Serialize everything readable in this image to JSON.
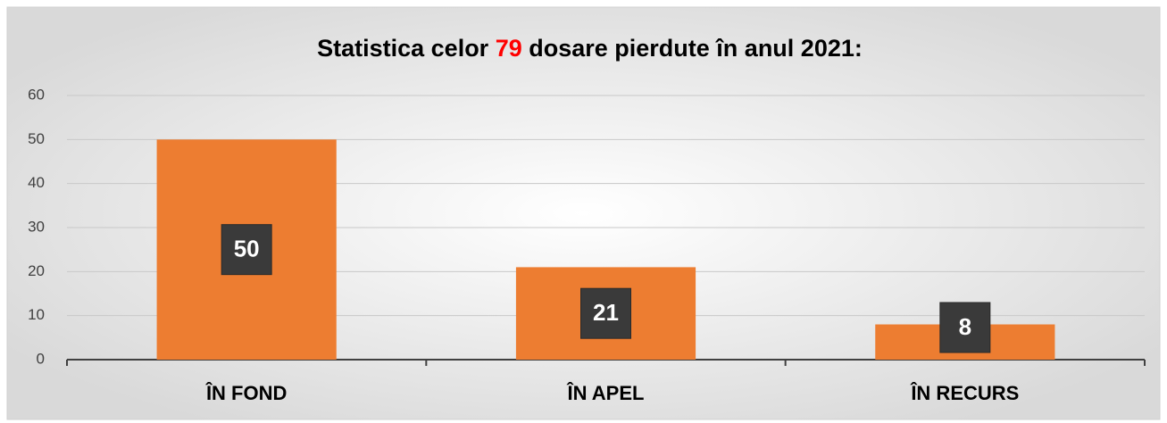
{
  "chart_data": {
    "type": "bar",
    "title_parts": [
      "Statistica celor ",
      "79",
      " dosare pierdute în anul 2021:"
    ],
    "highlight_color": "#ff0000",
    "categories": [
      "ÎN FOND",
      "ÎN APEL",
      "ÎN RECURS"
    ],
    "values": [
      50,
      21,
      8
    ],
    "color": "#ed7d31",
    "ylim": [
      0,
      60
    ],
    "yticks": [
      0,
      10,
      20,
      30,
      40,
      50,
      60
    ],
    "grid": true
  }
}
